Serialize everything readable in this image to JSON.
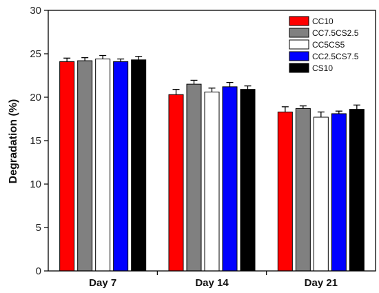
{
  "chart_data": {
    "type": "bar",
    "title": "",
    "xlabel": "",
    "ylabel": "Degradation (%)",
    "ylim": [
      0,
      30
    ],
    "yticks": [
      0,
      5,
      10,
      15,
      20,
      25,
      30
    ],
    "categories": [
      "Day 7",
      "Day 14",
      "Day 21"
    ],
    "legend_position": "top-right",
    "series": [
      {
        "name": "CC10",
        "color": "#ff0000",
        "values": [
          24.1,
          20.3,
          18.3
        ],
        "errors": [
          0.4,
          0.6,
          0.6
        ]
      },
      {
        "name": "CC7.5CS2.5",
        "color": "#808080",
        "values": [
          24.2,
          21.5,
          18.7
        ],
        "errors": [
          0.35,
          0.45,
          0.3
        ]
      },
      {
        "name": "CC5CS5",
        "color": "#ffffff",
        "values": [
          24.4,
          20.6,
          17.7
        ],
        "errors": [
          0.4,
          0.45,
          0.6
        ]
      },
      {
        "name": "CC2.5CS7.5",
        "color": "#0000ff",
        "values": [
          24.1,
          21.2,
          18.1
        ],
        "errors": [
          0.3,
          0.5,
          0.3
        ]
      },
      {
        "name": "CS10",
        "color": "#000000",
        "values": [
          24.3,
          20.9,
          18.6
        ],
        "errors": [
          0.4,
          0.4,
          0.5
        ]
      }
    ]
  }
}
